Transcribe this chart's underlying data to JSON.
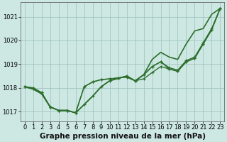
{
  "background_color": "#cde8e3",
  "plot_bg_color": "#cde8e3",
  "grid_color": "#9bbfba",
  "line_color": "#2d6e2d",
  "marker_color": "#2d6e2d",
  "xlabel": "Graphe pression niveau de la mer (hPa)",
  "ylim": [
    1016.6,
    1021.6
  ],
  "xlim": [
    -0.5,
    23.5
  ],
  "yticks": [
    1017,
    1018,
    1019,
    1020,
    1021
  ],
  "xticks": [
    0,
    1,
    2,
    3,
    4,
    5,
    6,
    7,
    8,
    9,
    10,
    11,
    12,
    13,
    14,
    15,
    16,
    17,
    18,
    19,
    20,
    21,
    22,
    23
  ],
  "series": [
    {
      "name": "line1_steep",
      "y": [
        1018.05,
        1018.0,
        1017.8,
        1017.2,
        1017.05,
        1017.05,
        1016.95,
        1017.3,
        1017.65,
        1018.05,
        1018.3,
        1018.4,
        1018.5,
        1018.3,
        1018.55,
        1018.9,
        1019.1,
        1018.8,
        1018.7,
        1019.1,
        1019.25,
        1019.85,
        1020.45,
        1021.35
      ],
      "marker": true,
      "linewidth": 1.0
    },
    {
      "name": "line2_mid",
      "y": [
        1018.05,
        1018.0,
        1017.8,
        1017.2,
        1017.05,
        1017.05,
        1016.95,
        1018.05,
        1018.25,
        1018.35,
        1018.38,
        1018.42,
        1018.45,
        1018.3,
        1018.38,
        1018.65,
        1018.9,
        1018.8,
        1018.7,
        1019.1,
        1019.25,
        1019.85,
        1020.45,
        1021.35
      ],
      "marker": true,
      "linewidth": 1.0
    },
    {
      "name": "line3_upper",
      "y": [
        1018.05,
        1017.95,
        1017.75,
        1017.2,
        1017.05,
        1017.05,
        1016.95,
        1018.05,
        1018.25,
        1018.35,
        1018.38,
        1018.42,
        1018.48,
        1018.3,
        1018.55,
        1018.9,
        1019.1,
        1018.85,
        1018.75,
        1019.15,
        1019.3,
        1019.9,
        1020.5,
        1021.35
      ],
      "marker": true,
      "linewidth": 1.0
    },
    {
      "name": "line4_forecast",
      "y": [
        1018.05,
        1017.95,
        1017.75,
        1017.2,
        1017.05,
        1017.05,
        1016.95,
        1017.3,
        1017.65,
        1018.05,
        1018.3,
        1018.4,
        1018.5,
        1018.3,
        1018.55,
        1019.2,
        1019.5,
        1019.3,
        1019.2,
        1019.85,
        1020.4,
        1020.5,
        1021.1,
        1021.35
      ],
      "marker": false,
      "linewidth": 1.2
    }
  ],
  "marker_size": 3.5,
  "tick_fontsize": 6.0,
  "label_fontsize": 7.5
}
